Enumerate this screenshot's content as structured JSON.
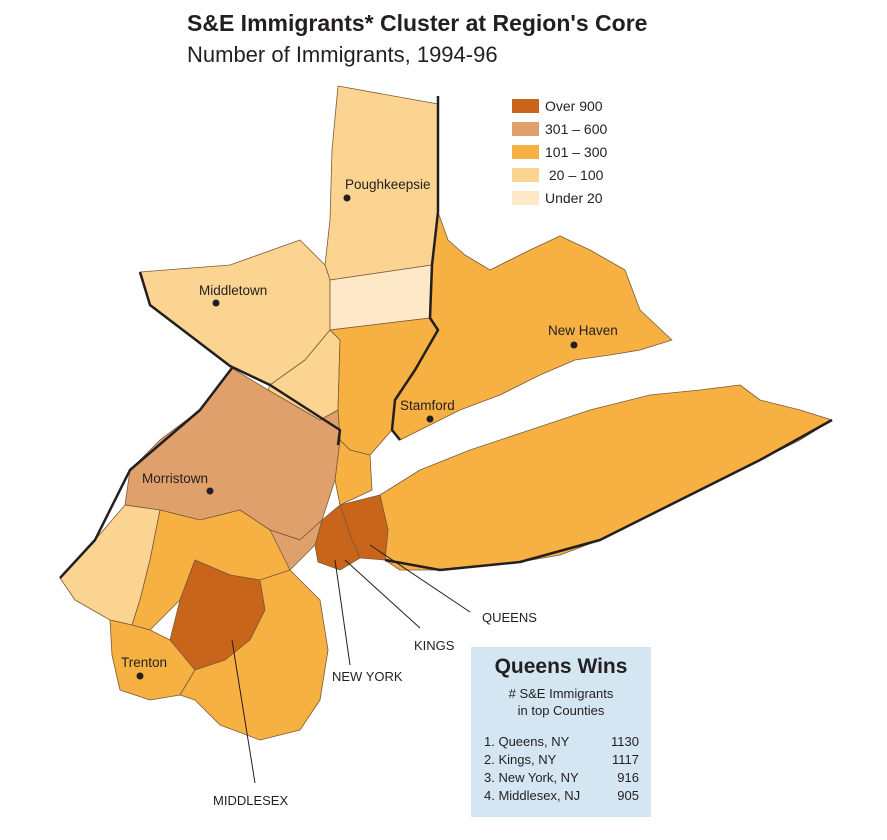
{
  "title": "S&E Immigrants* Cluster at Region's Core",
  "subtitle": "Number of Immigrants, 1994-96",
  "colors": {
    "over_900": "#c8651b",
    "r301_600": "#e0a06b",
    "r101_300": "#f7b042",
    "r20_100": "#fcd492",
    "under_20": "#fde8c8",
    "border": "#231f20",
    "box_bg": "#d4e6f1"
  },
  "legend": [
    {
      "label": "Over 900",
      "color": "#c8651b"
    },
    {
      "label": "301 – 600",
      "color": "#e0a06b"
    },
    {
      "label": "101 – 300",
      "color": "#f7b042"
    },
    {
      "label": " 20 – 100",
      "color": "#fcd492"
    },
    {
      "label": "Under 20",
      "color": "#fde8c8"
    }
  ],
  "cities": {
    "poughkeepsie": "Poughkeepsie",
    "middletown": "Middletown",
    "new_haven": "New Haven",
    "stamford": "Stamford",
    "morristown": "Morristown",
    "trenton": "Trenton"
  },
  "callouts": {
    "queens": "QUEENS",
    "kings": "KINGS",
    "new_york": "NEW YORK",
    "middlesex": "MIDDLESEX"
  },
  "box": {
    "title": "Queens Wins",
    "subtitle_line1": "# S&E Immigrants",
    "subtitle_line2": "in top Counties",
    "ranks": [
      {
        "name": "1. Queens, NY",
        "value": "1130"
      },
      {
        "name": "2. Kings, NY",
        "value": "1117"
      },
      {
        "name": "3. New York, NY",
        "value": "916"
      },
      {
        "name": "4. Middlesex, NJ",
        "value": "905"
      }
    ]
  }
}
